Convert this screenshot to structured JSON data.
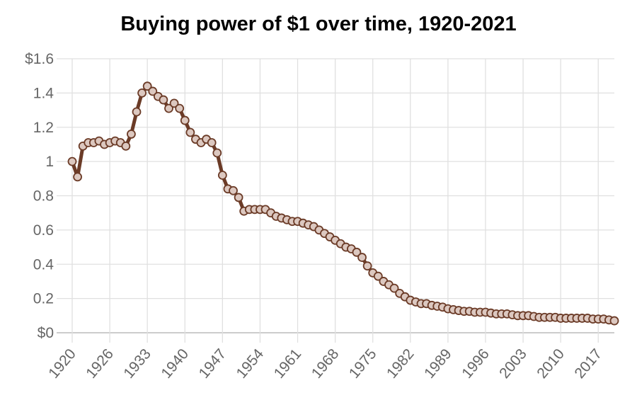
{
  "chart_data": {
    "type": "line",
    "title": "Buying power of $1 over time, 1920-2021",
    "xlabel": "",
    "ylabel": "",
    "ylim": [
      0,
      1.6
    ],
    "y_ticks": [
      "$0",
      "0.2",
      "0.4",
      "0.6",
      "0.8",
      "1",
      "1.2",
      "1.4",
      "$1.6"
    ],
    "y_tick_values": [
      0,
      0.2,
      0.4,
      0.6,
      0.8,
      1.0,
      1.2,
      1.4,
      1.6
    ],
    "x_ticks": [
      "1920",
      "1926",
      "1933",
      "1940",
      "1947",
      "1954",
      "1961",
      "1968",
      "1975",
      "1982",
      "1989",
      "1996",
      "2003",
      "2010",
      "2017"
    ],
    "x_tick_step": 7,
    "grid": true,
    "legend": "none",
    "colors": {
      "line": "#6b3b27",
      "point_fill": "#dcc8c0",
      "grid": "#e0e0e0",
      "axis": "#cccccc"
    },
    "x": [
      1920,
      1921,
      1922,
      1923,
      1924,
      1925,
      1926,
      1927,
      1928,
      1929,
      1930,
      1931,
      1932,
      1933,
      1934,
      1935,
      1936,
      1937,
      1938,
      1939,
      1940,
      1941,
      1942,
      1943,
      1944,
      1945,
      1946,
      1947,
      1948,
      1949,
      1950,
      1951,
      1952,
      1953,
      1954,
      1955,
      1956,
      1957,
      1958,
      1959,
      1960,
      1961,
      1962,
      1963,
      1964,
      1965,
      1966,
      1967,
      1968,
      1969,
      1970,
      1971,
      1972,
      1973,
      1974,
      1975,
      1976,
      1977,
      1978,
      1979,
      1980,
      1981,
      1982,
      1983,
      1984,
      1985,
      1986,
      1987,
      1988,
      1989,
      1990,
      1991,
      1992,
      1993,
      1994,
      1995,
      1996,
      1997,
      1998,
      1999,
      2000,
      2001,
      2002,
      2003,
      2004,
      2005,
      2006,
      2007,
      2008,
      2009,
      2010,
      2011,
      2012,
      2013,
      2014,
      2015,
      2016,
      2017,
      2018,
      2019,
      2020,
      2021
    ],
    "values": [
      1.0,
      0.91,
      1.09,
      1.11,
      1.11,
      1.12,
      1.1,
      1.11,
      1.12,
      1.11,
      1.09,
      1.16,
      1.29,
      1.4,
      1.44,
      1.41,
      1.38,
      1.36,
      1.31,
      1.34,
      1.31,
      1.24,
      1.17,
      1.13,
      1.11,
      1.13,
      1.11,
      1.05,
      0.92,
      0.84,
      0.83,
      0.79,
      0.71,
      0.72,
      0.72,
      0.72,
      0.72,
      0.7,
      0.68,
      0.67,
      0.66,
      0.65,
      0.65,
      0.64,
      0.63,
      0.62,
      0.6,
      0.58,
      0.56,
      0.54,
      0.52,
      0.5,
      0.49,
      0.47,
      0.44,
      0.39,
      0.35,
      0.33,
      0.3,
      0.28,
      0.26,
      0.23,
      0.21,
      0.19,
      0.18,
      0.17,
      0.17,
      0.16,
      0.155,
      0.15,
      0.14,
      0.135,
      0.13,
      0.125,
      0.125,
      0.12,
      0.12,
      0.12,
      0.115,
      0.11,
      0.11,
      0.11,
      0.105,
      0.1,
      0.1,
      0.1,
      0.095,
      0.09,
      0.09,
      0.09,
      0.09,
      0.085,
      0.085,
      0.085,
      0.085,
      0.085,
      0.085,
      0.08,
      0.08,
      0.08,
      0.075,
      0.07
    ]
  }
}
